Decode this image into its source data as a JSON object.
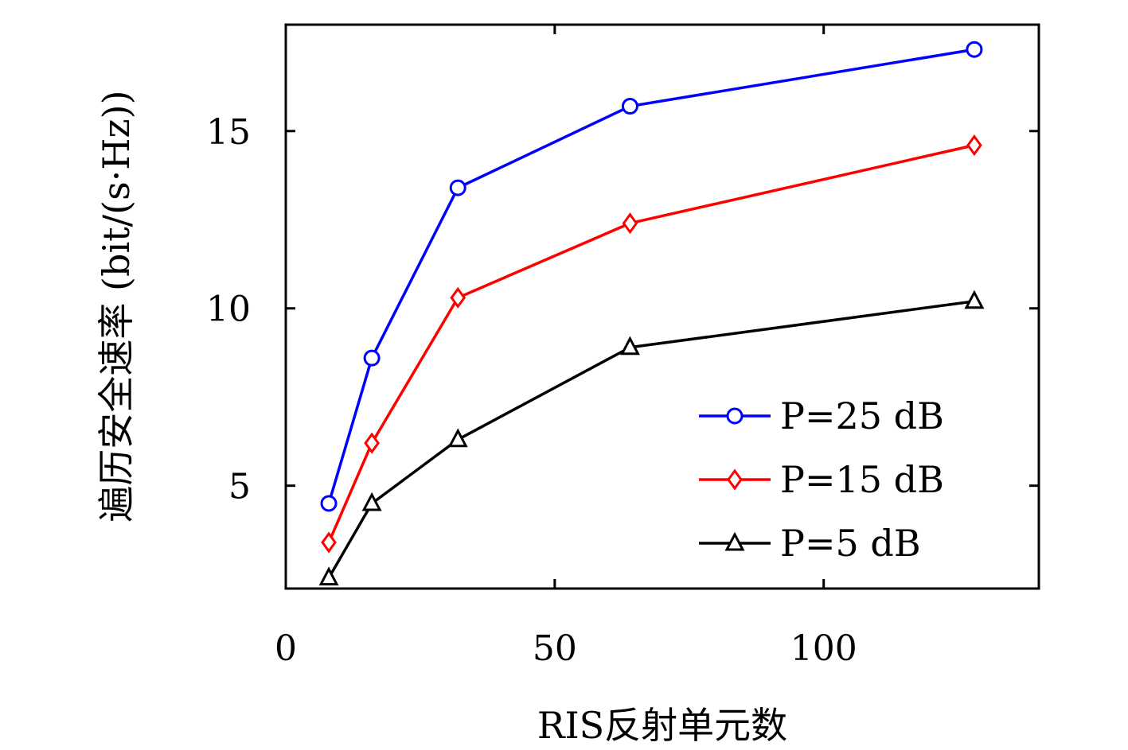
{
  "chart_data": {
    "type": "line",
    "xlabel": "RIS反射单元数",
    "ylabel": "遍历安全速率 (bit/(s·Hz))",
    "xlim": [
      0,
      140
    ],
    "ylim": [
      2.1,
      18
    ],
    "xticks": [
      0,
      50,
      100
    ],
    "yticks": [
      5,
      10,
      15
    ],
    "x": [
      8,
      16,
      32,
      64,
      128
    ],
    "series": [
      {
        "name": "P=25 dB",
        "color": "#0000ff",
        "marker": "circle",
        "values": [
          4.5,
          8.6,
          13.4,
          15.7,
          17.3
        ]
      },
      {
        "name": "P=15 dB",
        "color": "#ff0000",
        "marker": "diamond",
        "values": [
          3.4,
          6.2,
          10.3,
          12.4,
          14.6
        ]
      },
      {
        "name": "P=5 dB",
        "color": "#000000",
        "marker": "triangle",
        "values": [
          2.4,
          4.5,
          6.3,
          8.9,
          10.2
        ]
      }
    ],
    "legend_position": "bottom-right",
    "grid": false
  }
}
